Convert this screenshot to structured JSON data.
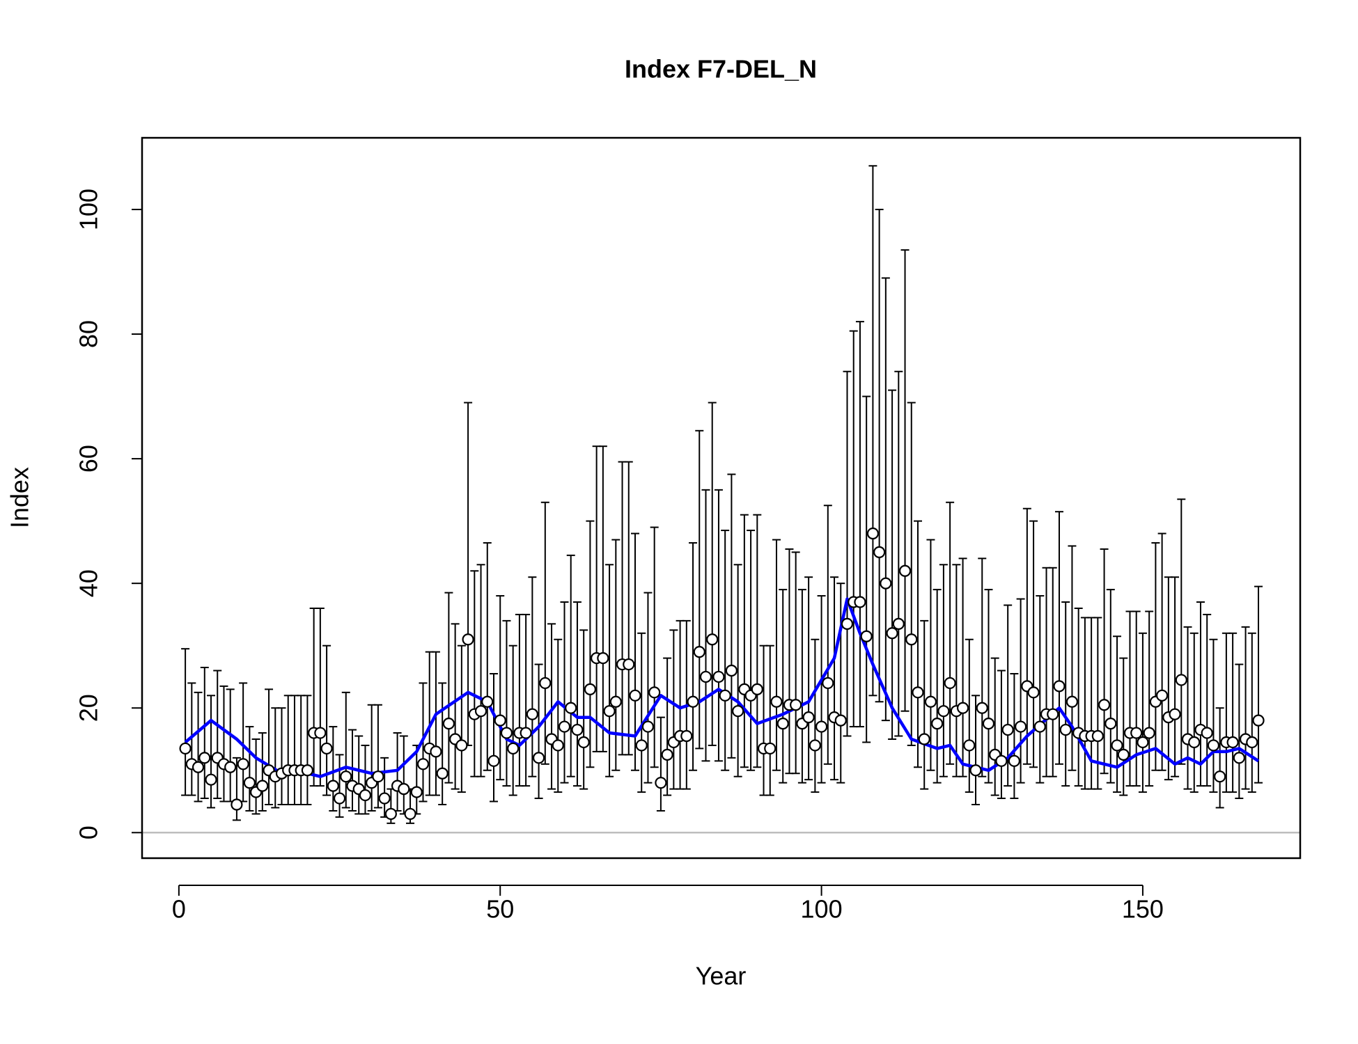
{
  "chart_data": {
    "type": "errorbar",
    "title": "Index F7-DEL_N",
    "x_label": "Year",
    "y_label": "Index",
    "xlim": [
      -5.73,
      174.5
    ],
    "ylim": [
      -4.1,
      111.5
    ],
    "xticks": [
      0,
      50,
      100,
      150
    ],
    "yticks": [
      0,
      20,
      40,
      60,
      80,
      100
    ],
    "reference_line": 0,
    "reference_color": "#bebebe",
    "point_fill": "#ffffff",
    "bar_color": "#000000",
    "x": [
      1,
      2,
      3,
      4,
      5,
      6,
      7,
      8,
      9,
      10,
      11,
      12,
      13,
      14,
      15,
      16,
      17,
      18,
      19,
      20,
      21,
      22,
      23,
      24,
      25,
      26,
      27,
      28,
      29,
      30,
      31,
      32,
      33,
      34,
      35,
      36,
      37,
      38,
      39,
      40,
      41,
      42,
      43,
      44,
      45,
      46,
      47,
      48,
      49,
      50,
      51,
      52,
      53,
      54,
      55,
      56,
      57,
      58,
      59,
      60,
      61,
      62,
      63,
      64,
      65,
      66,
      67,
      68,
      69,
      70,
      71,
      72,
      73,
      74,
      75,
      76,
      77,
      78,
      79,
      80,
      81,
      82,
      83,
      84,
      85,
      86,
      87,
      88,
      89,
      90,
      91,
      92,
      93,
      94,
      95,
      96,
      97,
      98,
      99,
      100,
      101,
      102,
      103,
      104,
      105,
      106,
      107,
      108,
      109,
      110,
      111,
      112,
      113,
      114,
      115,
      116,
      117,
      118,
      119,
      120,
      121,
      122,
      123,
      124,
      125,
      126,
      127,
      128,
      129,
      130,
      131,
      132,
      133,
      134,
      135,
      136,
      137,
      138,
      139,
      140,
      141,
      142,
      143,
      144,
      145,
      146,
      147,
      148,
      149,
      150,
      151,
      152,
      153,
      154,
      155,
      156,
      157,
      158,
      159,
      160,
      161,
      162,
      163,
      164,
      165,
      166,
      167,
      168
    ],
    "values": [
      13.5,
      11,
      10.5,
      12,
      8.5,
      12,
      11,
      10.5,
      4.5,
      11,
      8,
      6.5,
      7.5,
      10,
      9,
      9.5,
      10,
      10,
      10,
      10,
      16,
      16,
      13.5,
      7.5,
      5.5,
      9,
      7.5,
      7,
      6,
      8,
      9,
      5.5,
      3,
      7.5,
      7,
      3,
      6.5,
      11,
      13.5,
      13,
      9.5,
      17.5,
      15,
      14,
      31,
      19,
      19.5,
      21,
      11.5,
      18,
      16,
      13.5,
      16,
      16,
      19,
      12,
      24,
      15,
      14,
      17,
      20,
      16.5,
      14.5,
      23,
      28,
      28,
      19.5,
      21,
      27,
      27,
      22,
      14,
      17,
      22.5,
      8,
      12.5,
      14.5,
      15.5,
      15.5,
      21,
      29,
      25,
      31,
      25,
      22,
      26,
      19.5,
      23,
      22,
      23,
      13.5,
      13.5,
      21,
      17.5,
      20.5,
      20.5,
      17.5,
      18.5,
      14,
      17,
      24,
      18.5,
      18,
      33.5,
      37,
      37,
      31.5,
      48,
      45,
      40,
      32,
      33.5,
      42,
      31,
      22.5,
      15,
      21,
      17.5,
      19.5,
      24,
      19.5,
      20,
      14,
      10,
      20,
      17.5,
      12.5,
      11.5,
      16.5,
      11.5,
      17,
      23.5,
      22.5,
      17,
      19,
      19,
      23.5,
      16.5,
      21,
      16,
      15.5,
      15.5,
      15.5,
      20.5,
      17.5,
      14,
      12.5,
      16,
      16,
      14.5,
      16,
      21,
      22,
      18.5,
      19,
      24.5,
      15,
      14.5,
      16.5,
      16,
      14,
      9,
      14.5,
      14.5,
      12,
      15,
      14.5,
      18
    ],
    "lower": [
      6,
      6,
      5,
      5.5,
      4,
      5.5,
      5,
      5,
      2,
      5,
      3.5,
      3,
      3.5,
      4.5,
      4,
      4.5,
      4.5,
      4.5,
      4.5,
      4.5,
      7.5,
      7.5,
      6,
      3.5,
      2.5,
      4,
      3.5,
      3,
      3,
      3.5,
      4,
      2.5,
      1.5,
      3.5,
      3,
      1.5,
      3,
      5,
      6,
      6,
      4.5,
      8,
      7,
      6.5,
      14,
      9,
      9,
      10,
      5,
      8.5,
      7.5,
      6,
      7.5,
      7.5,
      9,
      5.5,
      11,
      7,
      6.5,
      8,
      9,
      7.5,
      7,
      10.5,
      13,
      13,
      9,
      10,
      12.5,
      12.5,
      10,
      6.5,
      8,
      10.5,
      3.5,
      6,
      7,
      7,
      7,
      10,
      13.5,
      11.5,
      14,
      11.5,
      10,
      12,
      9,
      10.5,
      10,
      10.5,
      6,
      6,
      10,
      8,
      9.5,
      9.5,
      8,
      8.5,
      6.5,
      8,
      11,
      8.5,
      8,
      15.5,
      17,
      17,
      14.5,
      22,
      21,
      18,
      15,
      15.5,
      19.5,
      14,
      10.5,
      7,
      10,
      8,
      9,
      11,
      9,
      9,
      6.5,
      4.5,
      9,
      8,
      6,
      5.5,
      7.5,
      5.5,
      8,
      11,
      10.5,
      8,
      9,
      9,
      11,
      7.5,
      10,
      7.5,
      7,
      7,
      7,
      9.5,
      8,
      6.5,
      6,
      7.5,
      7.5,
      6.5,
      7.5,
      10,
      10,
      8.5,
      9,
      11,
      7,
      6.5,
      7.5,
      7.5,
      6.5,
      4,
      6.5,
      6.5,
      5.5,
      7,
      6.5,
      8
    ],
    "upper": [
      29.5,
      24,
      22.5,
      26.5,
      22,
      26,
      23.5,
      23,
      12,
      24,
      17,
      15,
      16,
      23,
      20,
      20,
      22,
      22,
      22,
      22,
      36,
      36,
      30,
      17,
      12.5,
      22.5,
      16.5,
      15.5,
      14,
      20.5,
      20.5,
      12,
      7,
      16,
      15.5,
      7,
      14,
      24,
      29,
      29,
      24,
      38.5,
      33.5,
      30,
      69,
      42,
      43,
      46.5,
      25.5,
      38,
      34,
      30,
      35,
      35,
      41,
      27,
      53,
      33.5,
      31,
      37,
      44.5,
      37,
      32.5,
      50,
      62,
      62,
      43,
      47,
      59.5,
      59.5,
      48,
      32,
      38.5,
      49,
      18.5,
      28,
      32.5,
      34,
      34,
      46.5,
      64.5,
      55,
      69,
      55,
      48.5,
      57.5,
      43,
      51,
      48.5,
      51,
      30,
      30,
      47,
      39,
      45.5,
      45,
      39,
      41,
      31,
      38,
      52.5,
      41,
      40,
      74,
      80.5,
      82,
      70,
      107,
      100,
      89,
      71,
      74,
      93.5,
      69,
      50,
      34,
      47,
      39,
      43,
      53,
      43,
      44,
      31,
      22,
      44,
      39,
      28,
      26,
      36.5,
      25.5,
      37.5,
      52,
      50,
      38,
      42.5,
      42.5,
      51.5,
      37,
      46,
      36,
      34.5,
      34.5,
      34.5,
      45.5,
      39,
      31.5,
      28,
      35.5,
      35.5,
      32,
      35.5,
      46.5,
      48,
      41,
      41,
      53.5,
      33,
      32,
      37,
      35,
      31,
      20,
      32,
      32,
      27,
      33,
      32,
      39.5
    ],
    "smooth": {
      "color": "#0000ff",
      "x": [
        1,
        5,
        9,
        12,
        16,
        20,
        22,
        26,
        30,
        34,
        37,
        40,
        45,
        48,
        51,
        53,
        56,
        59,
        62,
        64,
        67,
        71,
        75,
        78,
        81,
        84,
        87,
        90,
        94,
        98,
        102,
        104,
        106,
        108,
        111,
        114,
        118,
        120,
        122,
        126,
        129,
        132,
        137,
        139,
        142,
        146,
        149,
        152,
        155,
        157,
        159,
        161,
        163,
        165,
        168
      ],
      "values": [
        14.5,
        18,
        15,
        12,
        9.5,
        9.5,
        9,
        10.5,
        9.5,
        10,
        13,
        19,
        22.5,
        21,
        15,
        14,
        17,
        21,
        18.5,
        18.5,
        16,
        15.5,
        22,
        20,
        21,
        23,
        21,
        17.5,
        19,
        21,
        28,
        37.5,
        32,
        27,
        20,
        15,
        13.5,
        14,
        11,
        10,
        12,
        15.5,
        20,
        17,
        11.5,
        10.5,
        12.5,
        13.5,
        11,
        12,
        11,
        13,
        13,
        13.5,
        11.5
      ]
    }
  }
}
